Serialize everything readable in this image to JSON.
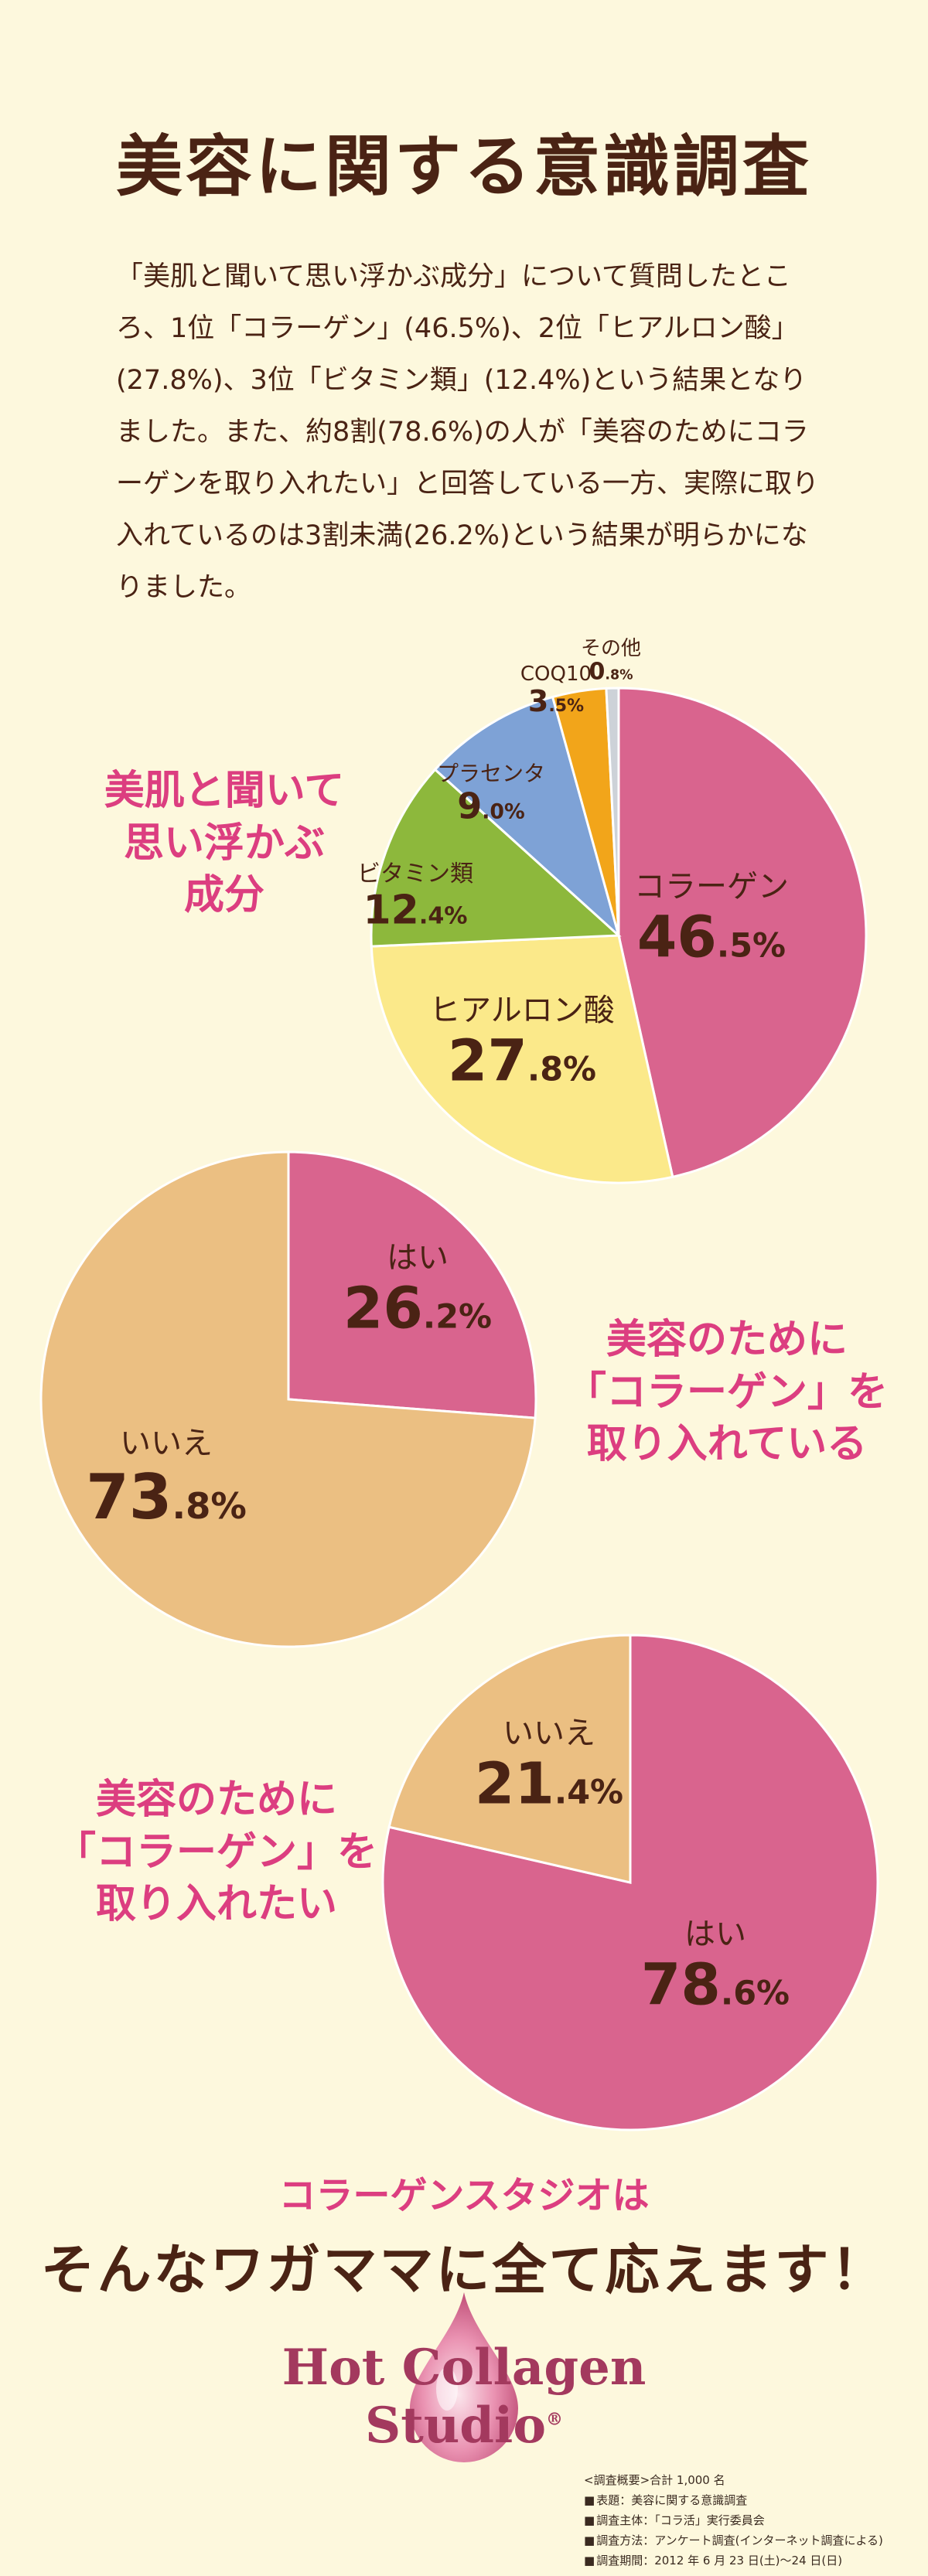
{
  "title": "美容に関する意識調査",
  "intro": "「美肌と聞いて思い浮かぶ成分」について質問したところ、1位「コラーゲン」(46.5%)、2位「ヒアルロン酸」(27.8%)、3位「ビタミン類」(12.4%)という結果となりました。また、約8割(78.6%)の人が「美容のためにコラーゲンを取り入れたい」と回答している一方、実際に取り入れているのは3割未満(26.2%)という結果が明らかになりました。",
  "colors": {
    "background": "#fdf8dd",
    "pink": "#d9648e",
    "tan": "#ebbf82",
    "yellow": "#fbe98a",
    "green": "#8db83c",
    "blue": "#7ea2d6",
    "orange": "#f2a51a",
    "gray": "#cdd2d8",
    "accent": "#dc3e80",
    "brown": "#4a2314"
  },
  "chart_data": [
    {
      "type": "pie",
      "title": [
        "美肌と聞いて",
        "思い浮かぶ",
        "成分"
      ],
      "slices": [
        {
          "label": "コラーゲン",
          "value": 46.5,
          "color": "#d9648e"
        },
        {
          "label": "ヒアルロン酸",
          "value": 27.8,
          "color": "#fbe98a"
        },
        {
          "label": "ビタミン類",
          "value": 12.4,
          "color": "#8db83c"
        },
        {
          "label": "プラセンタ",
          "value": 9.0,
          "color": "#7ea2d6"
        },
        {
          "label": "COQ10",
          "value": 3.5,
          "color": "#f2a51a"
        },
        {
          "label": "その他",
          "value": 0.8,
          "color": "#cdd2d8"
        }
      ]
    },
    {
      "type": "pie",
      "title": [
        "美容のために",
        "「コラーゲン」を",
        "取り入れている"
      ],
      "slices": [
        {
          "label": "はい",
          "value": 26.2,
          "color": "#d9648e"
        },
        {
          "label": "いいえ",
          "value": 73.8,
          "color": "#ebbf82"
        }
      ]
    },
    {
      "type": "pie",
      "title": [
        "美容のために",
        "「コラーゲン」を",
        "取り入れたい"
      ],
      "slices": [
        {
          "label": "はい",
          "value": 78.6,
          "color": "#d9648e"
        },
        {
          "label": "いいえ",
          "value": 21.4,
          "color": "#ebbf82"
        }
      ]
    }
  ],
  "footer": {
    "slogan1": "コラーゲンスタジオは",
    "slogan2": "そんなワガママに全て応えます！",
    "brand": "Hot Collagen Studio",
    "registered": "®"
  },
  "survey": {
    "heading": "<調査概要>合計 1,000 名",
    "rows": [
      "表題：美容に関する意識調査",
      "調査主体：「コラ活」実行委員会",
      "調査方法：アンケート調査(インターネット調査による)",
      "調査期間：2012 年 6 月 23 日(土)〜24 日(日)"
    ]
  }
}
